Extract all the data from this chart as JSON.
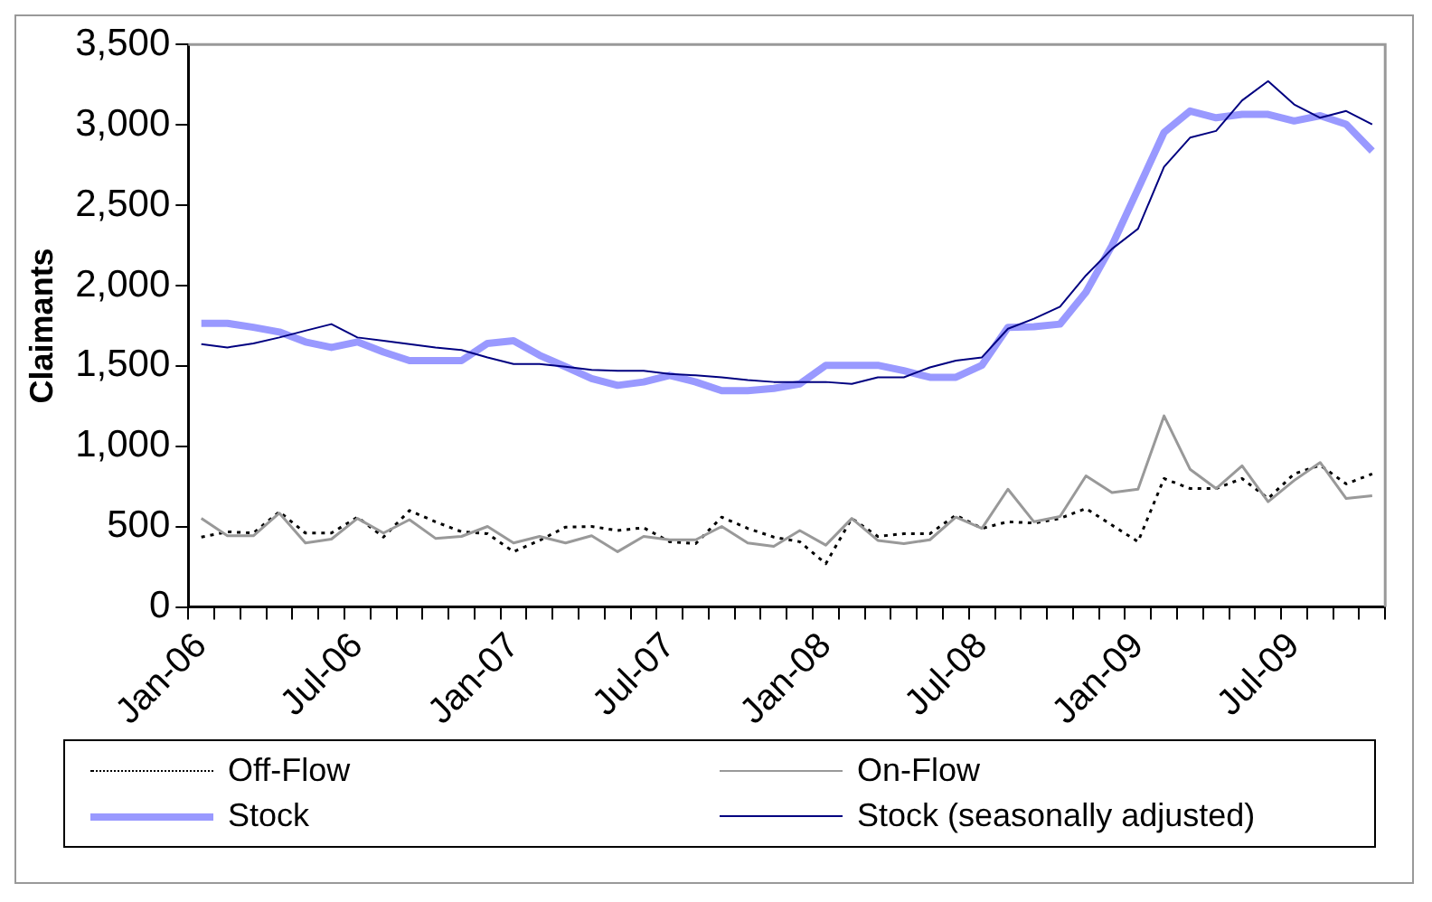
{
  "chart_data": {
    "type": "line",
    "ylabel": "Claimants",
    "categories": [
      "Jan-06",
      null,
      null,
      null,
      null,
      null,
      "Jul-06",
      null,
      null,
      null,
      null,
      null,
      "Jan-07",
      null,
      null,
      null,
      null,
      null,
      "Jul-07",
      null,
      null,
      null,
      null,
      null,
      "Jan-08",
      null,
      null,
      null,
      null,
      null,
      "Jul-08",
      null,
      null,
      null,
      null,
      null,
      "Jan-09",
      null,
      null,
      null,
      null,
      null,
      "Jul-09",
      null,
      null,
      null
    ],
    "series": [
      {
        "name": "Off-Flow",
        "color": "#000000",
        "line_style": "dotted",
        "values": [
          435,
          468,
          460,
          592,
          460,
          460,
          559,
          435,
          600,
          530,
          468,
          456,
          344,
          414,
          497,
          501,
          476,
          493,
          406,
          394,
          559,
          489,
          435,
          406,
          269,
          551,
          439,
          456,
          456,
          571,
          489,
          530,
          522,
          551,
          613,
          509,
          406,
          799,
          737,
          737,
          799,
          675,
          828,
          882,
          766,
          828
        ]
      },
      {
        "name": "On-Flow",
        "color": "#999999",
        "values": [
          551,
          443,
          443,
          584,
          398,
          422,
          551,
          460,
          543,
          427,
          439,
          501,
          398,
          439,
          398,
          443,
          344,
          439,
          418,
          418,
          501,
          398,
          377,
          476,
          385,
          551,
          414,
          394,
          418,
          559,
          489,
          733,
          530,
          563,
          816,
          712,
          733,
          1189,
          857,
          737,
          878,
          655,
          787,
          899,
          675,
          692
        ]
      },
      {
        "name": "Stock",
        "color": "#9999ff",
        "values": [
          1765,
          1765,
          1740,
          1711,
          1649,
          1615,
          1649,
          1586,
          1533,
          1533,
          1533,
          1640,
          1657,
          1566,
          1495,
          1421,
          1379,
          1400,
          1441,
          1400,
          1346,
          1346,
          1360,
          1388,
          1504,
          1504,
          1504,
          1470,
          1429,
          1429,
          1504,
          1740,
          1744,
          1760,
          1959,
          2249,
          2601,
          2953,
          3086,
          3044,
          3065,
          3065,
          3024,
          3057,
          3003,
          2837
        ]
      },
      {
        "name": "Stock (seasonally adjusted)",
        "color": "#000080",
        "values": [
          1636,
          1615,
          1640,
          1677,
          1719,
          1760,
          1677,
          1657,
          1636,
          1615,
          1599,
          1553,
          1512,
          1512,
          1495,
          1475,
          1470,
          1470,
          1450,
          1441,
          1429,
          1412,
          1400,
          1400,
          1400,
          1388,
          1429,
          1429,
          1491,
          1533,
          1553,
          1731,
          1794,
          1868,
          2063,
          2228,
          2353,
          2738,
          2920,
          2962,
          3152,
          3272,
          3127,
          3044,
          3086,
          3003
        ]
      }
    ],
    "ylim": [
      0,
      3500
    ],
    "yticks": [
      0,
      500,
      {
        "value": 1000,
        "label": "1,000"
      },
      {
        "value": 1500,
        "label": "1,500"
      },
      {
        "value": 2000,
        "label": "2,000"
      },
      {
        "value": 2500,
        "label": "2,500"
      },
      {
        "value": 3000,
        "label": "3,000"
      },
      {
        "value": 3500,
        "label": "3,500"
      }
    ],
    "grid": false,
    "legend": "bottom",
    "marker": "none",
    "line_style": "solid"
  }
}
